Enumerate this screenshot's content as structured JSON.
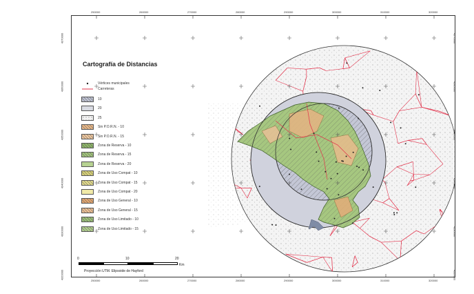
{
  "map": {
    "title": "Cartografía de Distancias",
    "projection": "Proyección UTM. Elipsoide de Hayford",
    "x_ticks": [
      "250000",
      "260000",
      "270000",
      "280000",
      "290000",
      "300000",
      "310000",
      "320000"
    ],
    "y_ticks": [
      "4370000",
      "4360000",
      "4350000",
      "4340000",
      "4330000",
      "4320000"
    ],
    "scale": {
      "labels": [
        "0",
        "10",
        "20"
      ],
      "unit": "Km"
    },
    "legend": {
      "point_label": "Vértices municipales",
      "line_label": "Carreteras",
      "items": [
        {
          "label": "10",
          "fill": "#bfc3d3",
          "pattern": "hatch"
        },
        {
          "label": "20",
          "fill": "#d9dbe3",
          "pattern": "none"
        },
        {
          "label": "25",
          "fill": "#f4f4f4",
          "pattern": "dots"
        },
        {
          "label": "Sin P.O.R.N. - 10",
          "fill": "#e9b98a",
          "pattern": "hatch"
        },
        {
          "label": "Sin P.O.R.N. - 15",
          "fill": "#edc79f",
          "pattern": "hatch"
        },
        {
          "label": "Zona de Reserva - 10",
          "fill": "#8fb66b",
          "pattern": "hatch"
        },
        {
          "label": "Zona de Reserva - 15",
          "fill": "#a2c47d",
          "pattern": "hatch"
        },
        {
          "label": "Zona de Reserva - 20",
          "fill": "#b7d392",
          "pattern": "none"
        },
        {
          "label": "Zona de Uso Compat - 10",
          "fill": "#d8d27a",
          "pattern": "hatch"
        },
        {
          "label": "Zona de Uso Compat - 15",
          "fill": "#e3dc90",
          "pattern": "hatch"
        },
        {
          "label": "Zona de Uso Compat - 20",
          "fill": "#f1eaa8",
          "pattern": "none"
        },
        {
          "label": "Zona de Uso General - 10",
          "fill": "#e3a873",
          "pattern": "hatch"
        },
        {
          "label": "Zona de Uso General - 15",
          "fill": "#ecc096",
          "pattern": "hatch"
        },
        {
          "label": "Zona de Uso Limitado - 10",
          "fill": "#9cc07a",
          "pattern": "hatch"
        },
        {
          "label": "Zona de Uso Limitado - 15",
          "fill": "#b3d090",
          "pattern": "hatch"
        }
      ]
    },
    "colors": {
      "roads": "#e2314a",
      "ring_outer": "#f3f3f3",
      "ring_mid": "#c8cbd8",
      "protected_area": "#9fc27b",
      "frame": "#333333"
    }
  }
}
